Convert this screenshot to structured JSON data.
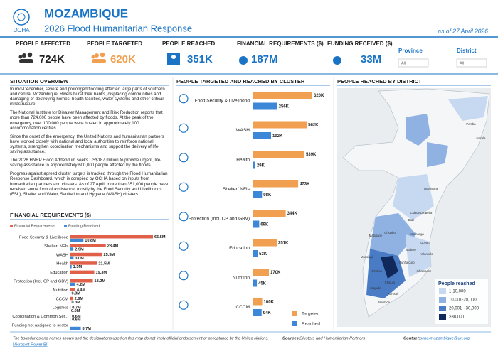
{
  "header": {
    "logo_text": "OCHA",
    "title": "MOZAMBIQUE",
    "subtitle": "2026 Flood Humanitarian Response",
    "date": "as of 27 April 2026"
  },
  "kpis": [
    {
      "label": "PEOPLE AFFECTED",
      "value": "724K"
    },
    {
      "label": "PEOPLE TARGETED",
      "value": "620K"
    },
    {
      "label": "PEOPLE REACHED",
      "value": "351K"
    },
    {
      "label": "FINANCIAL REQUIREMENTS ($)",
      "value": "187M"
    },
    {
      "label": "FUNDING RECEIVED ($)",
      "value": "33M"
    }
  ],
  "filters": [
    {
      "label": "Province",
      "value": "All"
    },
    {
      "label": "District",
      "value": "All"
    }
  ],
  "situation": {
    "title": "SITUATION OVERVIEW",
    "paragraphs": [
      "In mid-December, severe and prolonged flooding affected large parts of southern and central Mozambique. Rivers burst their banks, displacing communities and damaging or destroying homes, health facilities, water systems and other critical infrastructure.",
      "The National Institute for Disaster Management and Risk Reduction reports that more than 724,000 people have been affected by floods. At the peak of the emergency, over 100,000 people were hosted in approximately 100 accommodation centres.",
      "Since the onset of the emergency, the United Nations and humanitarian partners have worked closely with national and local authorities to reinforce national systems, strengthen coordination mechanisms and support the delivery of life-saving assistance.",
      "The 2026 HNRP Flood Addendum seeks US$187 million to provide urgent, life-saving assistance to approximately 600,000 people affected by the floods.",
      "Progress against agreed cluster targets is tracked through the Flood Humanitarian Response Dashboard, which is compiled by OCHA based on inputs from humanitarian partners and clusters. As of 27 April, more than 351,000 people have received some form of assistance, mostly by the Food Security and Livelihoods (FSL), Shelter and Water, Sanitation and Hygiene (WASH) clusters."
    ]
  },
  "chart_data": [
    {
      "type": "bar",
      "orientation": "horizontal",
      "title": "PEOPLE TARGETED AND REACHED BY CLUSTER",
      "categories": [
        "Food Security & Livelihood",
        "WASH",
        "Health",
        "Shelter/ NFIs",
        "Protection (Incl. CP and GBV)",
        "Education",
        "Nutrition",
        "CCCM"
      ],
      "series": [
        {
          "name": "Targeted",
          "color": "#f0a050",
          "values": [
            620000,
            562000,
            539000,
            473000,
            344000,
            251000,
            170000,
            100000
          ],
          "value_labels": [
            "620K",
            "562K",
            "539K",
            "473K",
            "344K",
            "251K",
            "170K",
            "100K"
          ]
        },
        {
          "name": "Reached",
          "color": "#3d87d8",
          "values": [
            256000,
            192000,
            29000,
            98000,
            69000,
            53000,
            45000,
            94000
          ],
          "value_labels": [
            "256K",
            "192K",
            "29K",
            "98K",
            "69K",
            "53K",
            "45K",
            "94K"
          ]
        }
      ],
      "legend": "bottom-right"
    },
    {
      "type": "bar",
      "orientation": "horizontal",
      "title": "FINANCIAL REQUIREMENTS ($)",
      "categories": [
        "Food Security & Livelihood",
        "Shelter/ NFIs",
        "WASH",
        "Health",
        "Education",
        "Protection (Incl. CP and GBV)",
        "Nutrition",
        "CCCM",
        "Logistics",
        "Coordination & Common Ser...",
        "Funding not assigned to sector"
      ],
      "series": [
        {
          "name": "Financial Requirements",
          "color": "#e0604a",
          "values": [
            65.5,
            28.4,
            25.5,
            21.5,
            19.3,
            18.2,
            4.4,
            2.6,
            0.7,
            0.6,
            null
          ],
          "value_labels": [
            "65.5M",
            "28.4M",
            "25.5M",
            "21.5M",
            "19.3M",
            "18.2M",
            "4.4M",
            "2.6M",
            "0.7M",
            "0.6M",
            null
          ]
        },
        {
          "name": "Funding Received",
          "color": "#3d87d8",
          "values": [
            10.8,
            2.9,
            3.0,
            1.5,
            null,
            4.2,
            0.3,
            0.3,
            0.0,
            0.6,
            8.7
          ],
          "value_labels": [
            "10.8M",
            "2.9M",
            "3.0M",
            "1.5M",
            null,
            "4.2M",
            "0.3M",
            "0.3M",
            "0.0M",
            "0.6M",
            "8.7M"
          ]
        }
      ],
      "legend": "top-left"
    }
  ],
  "map": {
    "title": "PEOPLE REACHED BY DISTRICT",
    "legend_title": "People reached",
    "legend": [
      {
        "label": "1-10,000",
        "color": "#c7d9f1"
      },
      {
        "label": "10,001-20,000",
        "color": "#8fb2e2"
      },
      {
        "label": "20,001 - 30,000",
        "color": "#4a7cc6"
      },
      {
        "label": ">30,001",
        "color": "#10295a"
      }
    ],
    "places": [
      "Pemba",
      "Nacala",
      "Quelimane",
      "Cidade Da Beira",
      "Buzi",
      "Machanga",
      "Govuro",
      "Vilankulo",
      "Mabote",
      "Funhalouro",
      "Inhambane",
      "Chigubo",
      "Mabalane",
      "Massingir",
      "Chibuto",
      "Chokwe",
      "Xai-Xai",
      "Magude",
      "Manhica"
    ]
  },
  "footer": {
    "disclaimer": "The boundaries and names shown and the designations used on this map do not imply official endorsement or acceptance by the United Nations.",
    "sources_label": "Sources:",
    "sources": "Clusters and Humanitarian Partners",
    "contact_label": "Contact:",
    "contact": "ocha-mozambique@un.org",
    "brand": "Microsoft Power BI"
  }
}
